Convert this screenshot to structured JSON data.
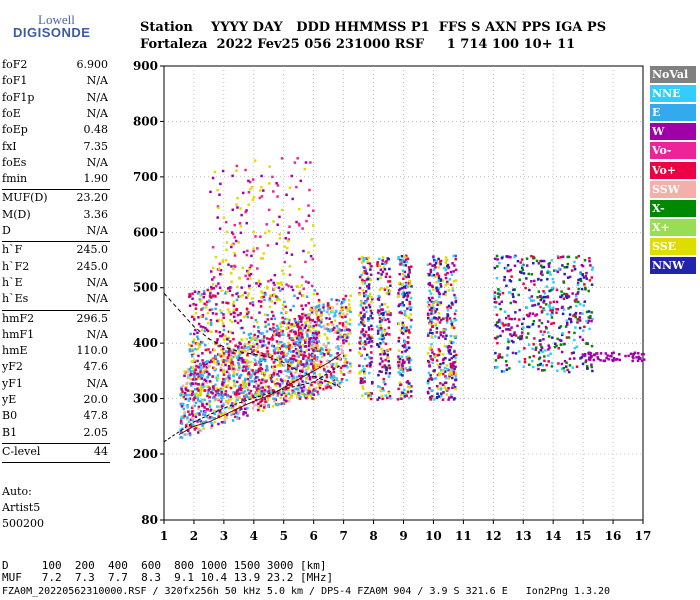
{
  "logo": {
    "top": "Lowell",
    "main": "DIGISONDE"
  },
  "header": {
    "line1": "Station    YYYY DAY   DDD HHMMSS P1  FFS S AXN PPS IGA PS",
    "line2": "Fortaleza  2022 Fev25 056 231000 RSF     1 714 100 10+ 11"
  },
  "params": {
    "group1": [
      {
        "label": "foF2",
        "value": "6.900"
      },
      {
        "label": "foF1",
        "value": "N/A"
      },
      {
        "label": "foF1p",
        "value": "N/A"
      },
      {
        "label": "foE",
        "value": "N/A"
      },
      {
        "label": "foEp",
        "value": "0.48"
      },
      {
        "label": "fxI",
        "value": "7.35"
      },
      {
        "label": "foEs",
        "value": "N/A"
      },
      {
        "label": "fmin",
        "value": "1.90"
      }
    ],
    "group2": [
      {
        "label": "MUF(D)",
        "value": "23.20"
      },
      {
        "label": "M(D)",
        "value": "3.36"
      },
      {
        "label": "D",
        "value": "N/A"
      }
    ],
    "group3": [
      {
        "label": "h`F",
        "value": "245.0"
      },
      {
        "label": "h`F2",
        "value": "245.0"
      },
      {
        "label": "h`E",
        "value": "N/A"
      },
      {
        "label": "h`Es",
        "value": "N/A"
      }
    ],
    "group4": [
      {
        "label": "hmF2",
        "value": "296.5"
      },
      {
        "label": "hmF1",
        "value": "N/A"
      },
      {
        "label": "hmE",
        "value": "110.0"
      },
      {
        "label": "yF2",
        "value": "47.6"
      },
      {
        "label": "yF1",
        "value": "N/A"
      },
      {
        "label": "yE",
        "value": "20.0"
      },
      {
        "label": "B0",
        "value": "47.8"
      },
      {
        "label": "B1",
        "value": "2.05"
      }
    ],
    "group5": [
      {
        "label": "C-level",
        "value": "44"
      }
    ]
  },
  "autoscaling": {
    "line1": "Auto:",
    "line2": "Artist5",
    "line3": "500200"
  },
  "footer": {
    "d_row": "D     100  200  400  600  800 1000 1500 3000 [km]",
    "muf_row": "MUF   7.2  7.3  7.7  8.3  9.1 10.4 13.9 23.2 [MHz]",
    "file_row": "FZA0M_20220562310000.RSF / 320fx256h 50 kHz 5.0 km / DPS-4 FZA0M 904 / 3.9 S 321.6 E   Ion2Png 1.3.20"
  },
  "legend": [
    {
      "label": "NoVal",
      "color": "#808080"
    },
    {
      "label": "NNE",
      "color": "#33ccff"
    },
    {
      "label": "E",
      "color": "#33aaee"
    },
    {
      "label": "W",
      "color": "#a000a8"
    },
    {
      "label": "Vo-",
      "color": "#ee2299"
    },
    {
      "label": "Vo+",
      "color": "#ee0044"
    },
    {
      "label": "SSW",
      "color": "#f4b0a8"
    },
    {
      "label": "X-",
      "color": "#008800"
    },
    {
      "label": "X+",
      "color": "#99dd55"
    },
    {
      "label": "SSE",
      "color": "#dddd00"
    },
    {
      "label": "NNW",
      "color": "#2222aa"
    }
  ],
  "chart_data": {
    "type": "scatter",
    "title": "",
    "xlabel": "",
    "ylabel": "",
    "xlim": [
      1,
      17
    ],
    "ylim": [
      80,
      900
    ],
    "x_ticks": [
      1,
      2,
      3,
      4,
      5,
      6,
      7,
      8,
      9,
      10,
      11,
      12,
      13,
      14,
      15,
      16,
      17
    ],
    "y_ticks": [
      80,
      200,
      300,
      400,
      500,
      600,
      700,
      800,
      900
    ],
    "grid": "dotted",
    "legend_position": "right",
    "echo_clusters": [
      {
        "name": "low F-trace",
        "x_range": [
          1.5,
          7.2
        ],
        "y_range": [
          200,
          420
        ],
        "colors": [
          "#f4b0a8",
          "#33aaee",
          "#33ccff",
          "#ee0044",
          "#dddd00",
          "#a000a8"
        ]
      },
      {
        "name": "upper F-trace",
        "x_range": [
          1.8,
          6.2
        ],
        "y_range": [
          300,
          500
        ],
        "colors": [
          "#a000a8",
          "#33aaee",
          "#ee0044",
          "#dddd00"
        ]
      },
      {
        "name": "spread above 5",
        "x_range": [
          2.5,
          6.0
        ],
        "y_range": [
          500,
          740
        ],
        "colors": [
          "#dddd00",
          "#a000a8",
          "#ee2299"
        ]
      },
      {
        "name": "band 7.5-11",
        "x_range": [
          7.3,
          11.2
        ],
        "y_range": [
          300,
          560
        ],
        "colors": [
          "#33ccff",
          "#a000a8",
          "#2222aa",
          "#dddd00",
          "#ee0044"
        ]
      },
      {
        "name": "band 12-15.3",
        "x_range": [
          12.0,
          15.3
        ],
        "y_range": [
          350,
          560
        ],
        "colors": [
          "#008800",
          "#a000a8",
          "#ee0044",
          "#2222aa",
          "#33ccff"
        ]
      },
      {
        "name": "tail 15-17",
        "x_range": [
          15.0,
          17.0
        ],
        "y_range": [
          370,
          385
        ],
        "colors": [
          "#a000a8"
        ]
      }
    ],
    "profile_curve": [
      [
        1,
        222
      ],
      [
        2,
        258
      ],
      [
        3,
        283
      ],
      [
        4,
        301
      ],
      [
        5,
        317
      ],
      [
        6,
        330
      ],
      [
        6.9,
        360
      ]
    ],
    "muf_curve_upper": [
      [
        1.0,
        490
      ],
      [
        1.5,
        460
      ],
      [
        2.0,
        430
      ],
      [
        2.5,
        408
      ],
      [
        3.0,
        393
      ],
      [
        3.5,
        385
      ],
      [
        4.0,
        380
      ],
      [
        4.5,
        375
      ],
      [
        5.0,
        365
      ],
      [
        5.5,
        350
      ],
      [
        6.0,
        340
      ],
      [
        6.5,
        330
      ],
      [
        6.9,
        320
      ]
    ],
    "muf_curve_lower": [
      [
        1.5,
        235
      ],
      [
        2.0,
        250
      ],
      [
        2.5,
        258
      ],
      [
        3.0,
        270
      ],
      [
        3.5,
        283
      ],
      [
        4.0,
        295
      ],
      [
        4.5,
        305
      ],
      [
        5.0,
        320
      ],
      [
        5.5,
        335
      ],
      [
        6.0,
        350
      ],
      [
        6.5,
        365
      ],
      [
        6.9,
        380
      ]
    ]
  }
}
